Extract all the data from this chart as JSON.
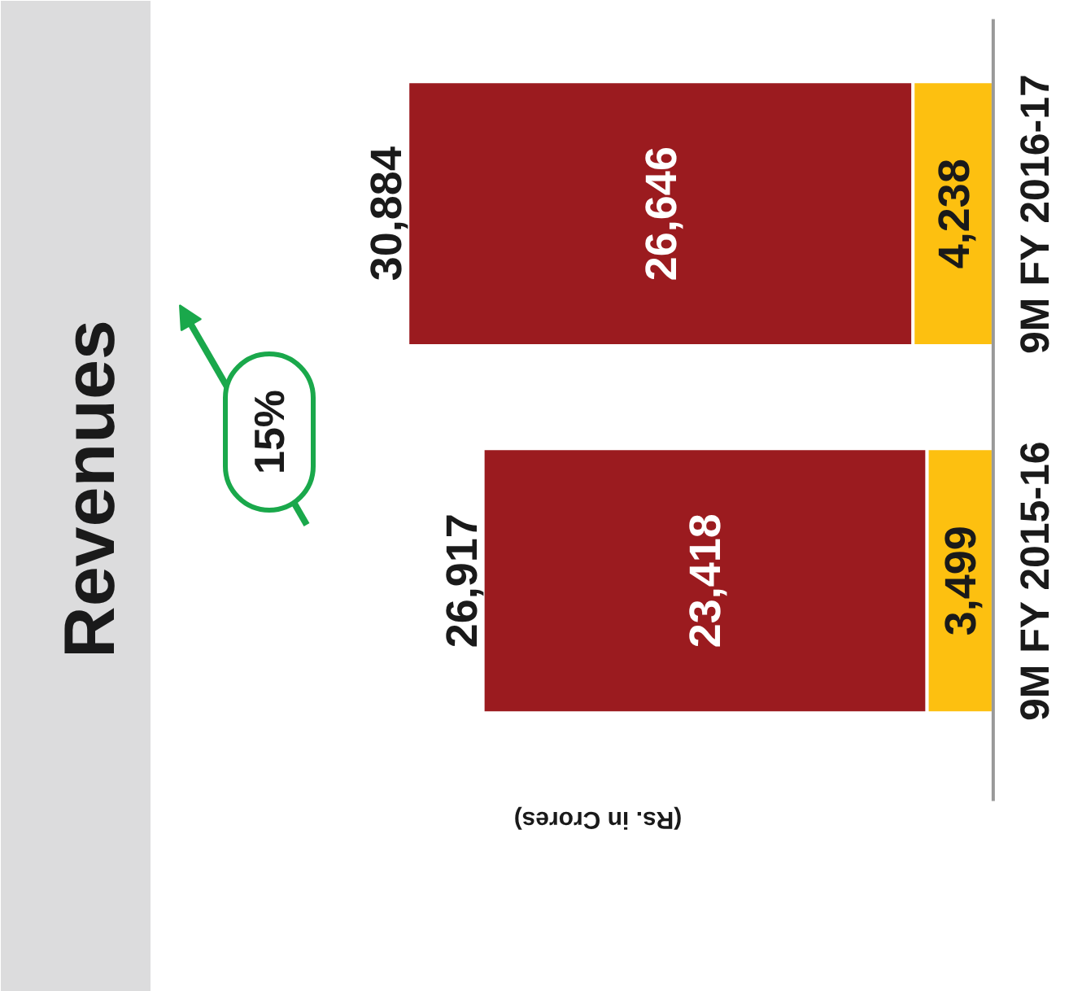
{
  "chart_data": {
    "type": "bar",
    "orientation": "horizontal",
    "stacked": true,
    "title": "Revenues",
    "xlabel": "(Rs. in Crores)",
    "categories": [
      "9M FY 2016-17",
      "9M FY 2015-16"
    ],
    "series": [
      {
        "color": "#fdc010",
        "values": [
          4238,
          3499
        ],
        "value_labels": [
          "4,238",
          "3,499"
        ]
      },
      {
        "color": "#9b1b1f",
        "values": [
          26646,
          23418
        ],
        "value_labels": [
          "26,646",
          "23,418"
        ]
      }
    ],
    "totals": [
      "30,884",
      "26,917"
    ],
    "annotations": [
      "15%"
    ],
    "tick_labels": "y"
  }
}
